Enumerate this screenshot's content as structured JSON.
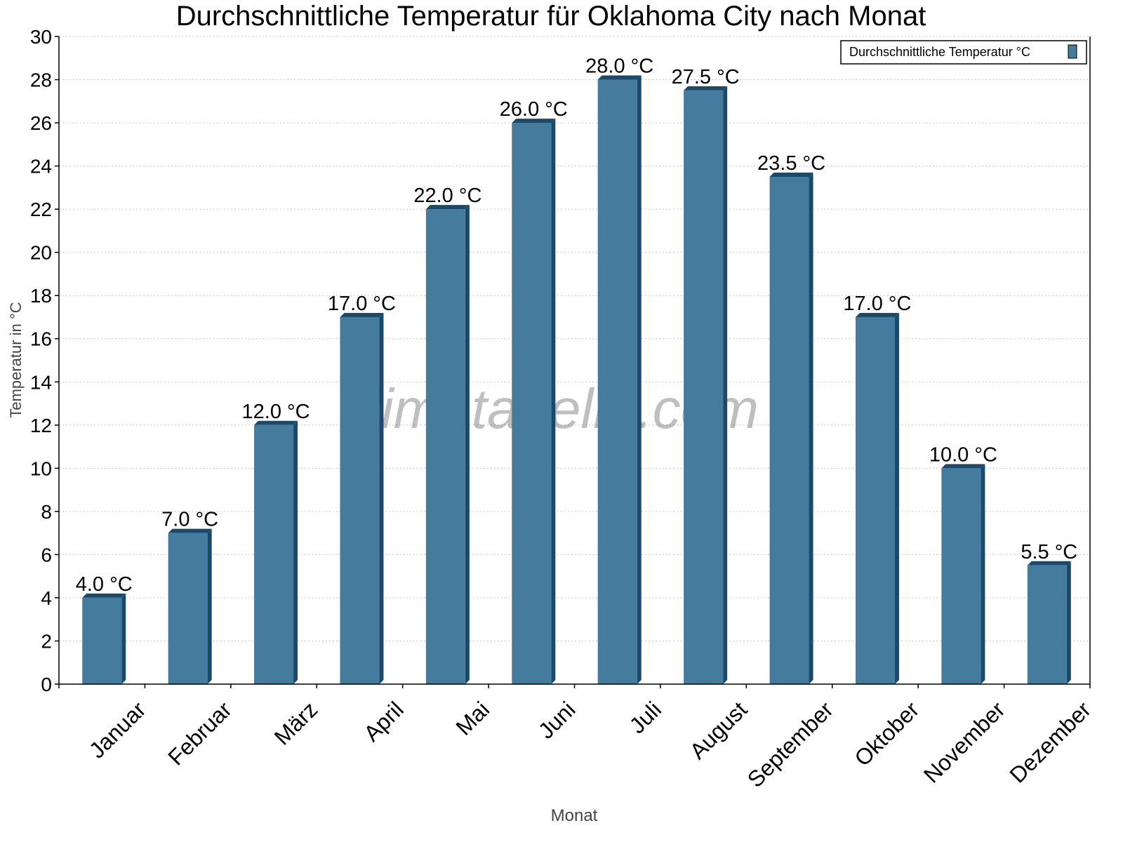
{
  "chart_data": {
    "type": "bar",
    "title": "Durchschnittliche Temperatur für Oklahoma City nach Monat",
    "xlabel": "Monat",
    "ylabel": "Temperatur in °C",
    "ylim": [
      0,
      30
    ],
    "yticks": [
      0,
      2,
      4,
      6,
      8,
      10,
      12,
      14,
      16,
      18,
      20,
      22,
      24,
      26,
      28,
      30
    ],
    "grid": true,
    "legend_position": "top-right",
    "categories": [
      "Januar",
      "Februar",
      "März",
      "April",
      "Mai",
      "Juni",
      "Juli",
      "August",
      "September",
      "Oktober",
      "November",
      "Dezember"
    ],
    "series": [
      {
        "name": "Durchschnittliche Temperatur °C",
        "values": [
          4.0,
          7.0,
          12.0,
          17.0,
          22.0,
          26.0,
          28.0,
          27.5,
          23.5,
          17.0,
          10.0,
          5.5
        ],
        "data_labels": [
          "4.0 °C",
          "7.0 °C",
          "12.0 °C",
          "17.0 °C",
          "22.0 °C",
          "26.0 °C",
          "28.0 °C",
          "27.5 °C",
          "23.5 °C",
          "17.0 °C",
          "10.0 °C",
          "5.5 °C"
        ]
      }
    ],
    "colors": {
      "bar": "#457b9d",
      "bar_side": "#1a4a6b",
      "grid": "#c8c8c8"
    },
    "watermark": "klimatabelle.com"
  }
}
